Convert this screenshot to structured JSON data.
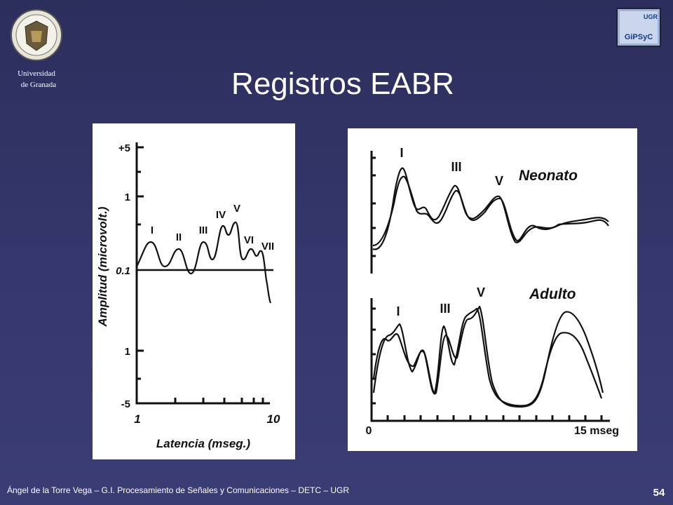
{
  "header": {
    "university_lines": [
      "Universidad",
      "de Granada"
    ],
    "logo_text": [
      "UGR",
      "GiPSyC"
    ],
    "title": "Registros EABR"
  },
  "figure_left": {
    "y_axis_label": "Amplitud (microvolt.)",
    "y_ticks": [
      "+5",
      "1",
      "0.1",
      "1",
      "-5"
    ],
    "x_axis_label": "Latencia (mseg.)",
    "x_ticks": [
      "1",
      "10"
    ],
    "wave_labels": [
      "I",
      "II",
      "III",
      "IV",
      "V",
      "VI",
      "VII"
    ]
  },
  "figure_right": {
    "panels": [
      {
        "label": "Neonato",
        "wave_labels": [
          "I",
          "III",
          "V"
        ]
      },
      {
        "label": "Adulto",
        "wave_labels": [
          "I",
          "III",
          "V"
        ]
      }
    ],
    "x_ticks": [
      "0",
      "15 mseg"
    ]
  },
  "footer": {
    "credit": "Ángel de la Torre Vega – G.I. Procesamiento de Señales y Comunicaciones – DETC – UGR",
    "page": "54"
  }
}
